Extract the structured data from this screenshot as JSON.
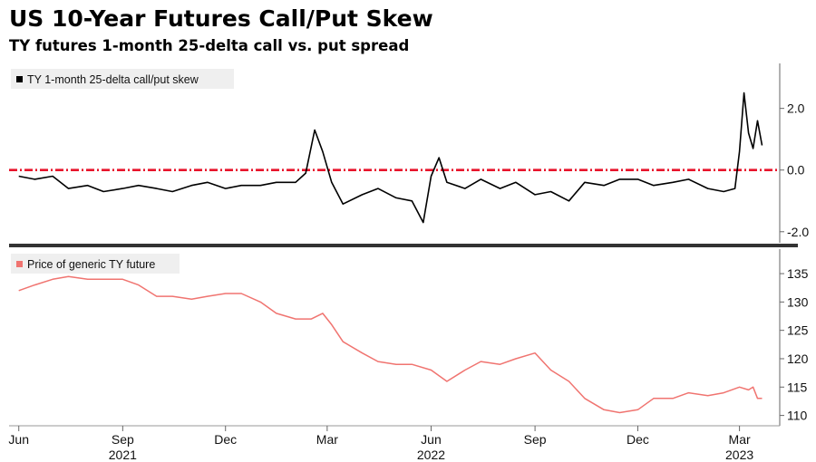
{
  "title": "US 10-Year Futures Call/Put Skew",
  "subtitle": "TY futures 1-month 25-delta call vs. put spread",
  "colors": {
    "skew_line": "#000000",
    "price_line": "#f07470",
    "zero_line": "#e8142c",
    "divider": "#333333"
  },
  "chart_data": [
    {
      "type": "line",
      "legend": "TY 1-month 25-delta call/put skew",
      "legend_placement": "top-left",
      "y_ticks": [
        2.0,
        0.0,
        -2.0
      ],
      "y_tick_labels": [
        "2.0",
        "0.0",
        "-2.0"
      ],
      "ylim": [
        -2.3,
        3.4
      ],
      "y_axis_side": "right",
      "reference_line": 0.0,
      "series": [
        {
          "x": [
            "2021-06-01",
            "2021-06-15",
            "2021-07-01",
            "2021-07-15",
            "2021-08-01",
            "2021-08-15",
            "2021-09-01",
            "2021-09-15",
            "2021-10-01",
            "2021-10-15",
            "2021-11-01",
            "2021-11-15",
            "2021-12-01",
            "2021-12-15",
            "2022-01-01",
            "2022-01-15",
            "2022-02-01",
            "2022-02-10",
            "2022-02-18",
            "2022-02-25",
            "2022-03-05",
            "2022-03-15",
            "2022-04-01",
            "2022-04-15",
            "2022-05-01",
            "2022-05-15",
            "2022-05-25",
            "2022-06-01",
            "2022-06-08",
            "2022-06-15",
            "2022-07-01",
            "2022-07-15",
            "2022-08-01",
            "2022-08-15",
            "2022-09-01",
            "2022-09-15",
            "2022-10-01",
            "2022-10-15",
            "2022-11-01",
            "2022-11-15",
            "2022-12-01",
            "2022-12-15",
            "2023-01-01",
            "2023-01-15",
            "2023-02-01",
            "2023-02-15",
            "2023-02-25",
            "2023-03-01",
            "2023-03-05",
            "2023-03-09",
            "2023-03-13",
            "2023-03-17",
            "2023-03-21"
          ],
          "y": [
            -0.2,
            -0.3,
            -0.2,
            -0.6,
            -0.5,
            -0.7,
            -0.6,
            -0.5,
            -0.6,
            -0.7,
            -0.5,
            -0.4,
            -0.6,
            -0.5,
            -0.5,
            -0.4,
            -0.4,
            -0.1,
            1.3,
            0.6,
            -0.4,
            -1.1,
            -0.8,
            -0.6,
            -0.9,
            -1.0,
            -1.7,
            -0.2,
            0.4,
            -0.4,
            -0.6,
            -0.3,
            -0.6,
            -0.4,
            -0.8,
            -0.7,
            -1.0,
            -0.4,
            -0.5,
            -0.3,
            -0.3,
            -0.5,
            -0.4,
            -0.3,
            -0.6,
            -0.7,
            -0.6,
            0.6,
            2.5,
            1.2,
            0.7,
            1.6,
            0.8
          ]
        }
      ]
    },
    {
      "type": "line",
      "legend": "Price of generic TY future",
      "legend_placement": "top-left",
      "y_ticks": [
        135,
        130,
        125,
        120,
        115,
        110
      ],
      "y_tick_labels": [
        "135",
        "130",
        "125",
        "120",
        "115",
        "110"
      ],
      "ylim": [
        108.5,
        139
      ],
      "y_axis_side": "right",
      "series": [
        {
          "x": [
            "2021-06-01",
            "2021-06-15",
            "2021-07-01",
            "2021-07-15",
            "2021-08-01",
            "2021-08-15",
            "2021-09-01",
            "2021-09-15",
            "2021-10-01",
            "2021-10-15",
            "2021-11-01",
            "2021-11-15",
            "2021-12-01",
            "2021-12-15",
            "2022-01-01",
            "2022-01-15",
            "2022-02-01",
            "2022-02-15",
            "2022-02-25",
            "2022-03-05",
            "2022-03-15",
            "2022-04-01",
            "2022-04-15",
            "2022-05-01",
            "2022-05-15",
            "2022-06-01",
            "2022-06-15",
            "2022-07-01",
            "2022-07-15",
            "2022-08-01",
            "2022-08-15",
            "2022-09-01",
            "2022-09-15",
            "2022-10-01",
            "2022-10-15",
            "2022-11-01",
            "2022-11-15",
            "2022-12-01",
            "2022-12-15",
            "2023-01-01",
            "2023-01-15",
            "2023-02-01",
            "2023-02-15",
            "2023-03-01",
            "2023-03-09",
            "2023-03-13",
            "2023-03-17",
            "2023-03-21"
          ],
          "y": [
            132,
            133,
            134,
            134.5,
            134,
            134,
            134,
            133,
            131,
            131,
            130.5,
            131,
            131.5,
            131.5,
            130,
            128,
            127,
            127,
            128,
            126,
            123,
            121,
            119.5,
            119,
            119,
            118,
            116,
            118,
            119.5,
            119,
            120,
            121,
            118,
            116,
            113,
            111,
            110.5,
            111,
            113,
            113,
            114,
            113.5,
            114,
            115,
            114.5,
            115,
            113,
            113
          ]
        }
      ]
    }
  ],
  "x_axis": {
    "month_labels": [
      "Jun",
      "Sep",
      "Dec",
      "Mar",
      "Jun",
      "Sep",
      "Dec",
      "Mar"
    ],
    "month_dates": [
      "2021-06-01",
      "2021-09-01",
      "2021-12-01",
      "2022-03-01",
      "2022-06-01",
      "2022-09-01",
      "2022-12-01",
      "2023-03-01"
    ],
    "year_labels": [
      "2021",
      "2022",
      "2023"
    ],
    "year_dates": [
      "2021-09-01",
      "2022-06-01",
      "2023-03-01"
    ]
  }
}
